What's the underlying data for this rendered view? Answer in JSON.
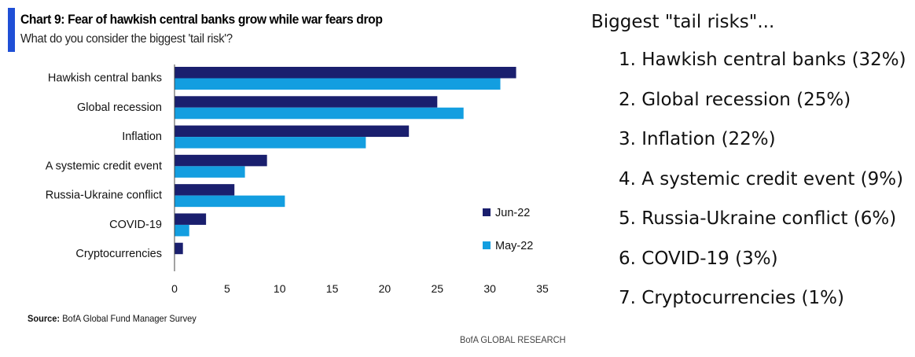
{
  "chart": {
    "title": "Chart 9: Fear of hawkish central banks grow while war fears drop",
    "subtitle": "What do you consider the biggest 'tail risk'?",
    "source_label": "Source:",
    "source_text": "BofA Global Fund Manager Survey",
    "footer": "BofA GLOBAL RESEARCH"
  },
  "chart_data": {
    "type": "bar",
    "orientation": "horizontal",
    "title": "Chart 9: Fear of hawkish central banks grow while war fears drop",
    "subtitle": "What do you consider the biggest 'tail risk'?",
    "categories": [
      "Hawkish central banks",
      "Global recession",
      "Inflation",
      "A systemic credit event",
      "Russia-Ukraine conflict",
      "COVID-19",
      "Cryptocurrencies"
    ],
    "series": [
      {
        "name": "Jun-22",
        "color": "#1a1f6e",
        "values": [
          32.5,
          25,
          22.3,
          8.8,
          5.7,
          3,
          0.8
        ]
      },
      {
        "name": "May-22",
        "color": "#139ee0",
        "values": [
          31,
          27.5,
          18.2,
          6.7,
          10.5,
          1.4,
          0
        ]
      }
    ],
    "xlim": [
      0,
      35
    ],
    "xticks": [
      0,
      5,
      10,
      15,
      20,
      25,
      30,
      35
    ],
    "xlabel": "",
    "ylabel": "",
    "grid": false,
    "legend_position": "lower-right"
  },
  "side": {
    "heading": "Biggest \"tail risks\"...",
    "items": [
      "1. Hawkish central banks (32%)",
      "2. Global recession (25%)",
      "3. Inflation (22%)",
      "4. A systemic credit event (9%)",
      "5. Russia-Ukraine conflict (6%)",
      "6. COVID-19 (3%)",
      "7. Cryptocurrencies (1%)"
    ]
  }
}
